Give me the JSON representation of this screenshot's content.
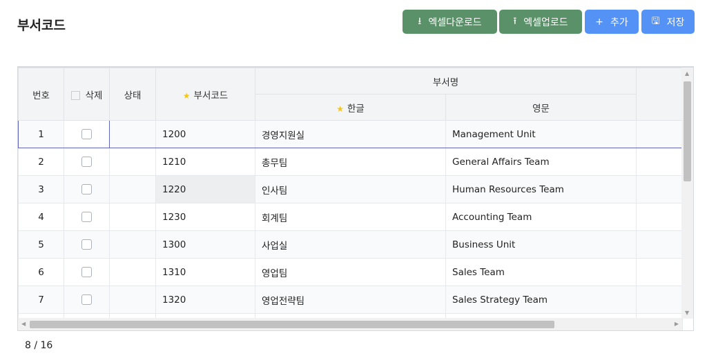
{
  "page_title": "부서코드",
  "toolbar": {
    "excel_download": "엑셀다운로드",
    "excel_upload": "엑셀업로드",
    "add": "추가",
    "save": "저장"
  },
  "columns": {
    "no": "번호",
    "delete": "삭제",
    "status": "상태",
    "code": "부서코드",
    "dept_name": "부서명",
    "korean": "한글",
    "english": "영문"
  },
  "rows": [
    {
      "no": "1",
      "status": "",
      "code": "1200",
      "korean": "경영지원실",
      "english": "Management Unit"
    },
    {
      "no": "2",
      "status": "",
      "code": "1210",
      "korean": "총무팀",
      "english": "General Affairs Team"
    },
    {
      "no": "3",
      "status": "",
      "code": "1220",
      "korean": "인사팀",
      "english": "Human Resources Team"
    },
    {
      "no": "4",
      "status": "",
      "code": "1230",
      "korean": "회계팀",
      "english": "Accounting Team"
    },
    {
      "no": "5",
      "status": "",
      "code": "1300",
      "korean": "사업실",
      "english": "Business Unit"
    },
    {
      "no": "6",
      "status": "",
      "code": "1310",
      "korean": "영업팀",
      "english": "Sales Team"
    },
    {
      "no": "7",
      "status": "",
      "code": "1320",
      "korean": "영업전략팀",
      "english": "Sales Strategy Team"
    }
  ],
  "footer": {
    "pagination": "8 / 16"
  },
  "colors": {
    "green": "#5a9168",
    "blue": "#5592f5",
    "selection": "#6366b8"
  }
}
